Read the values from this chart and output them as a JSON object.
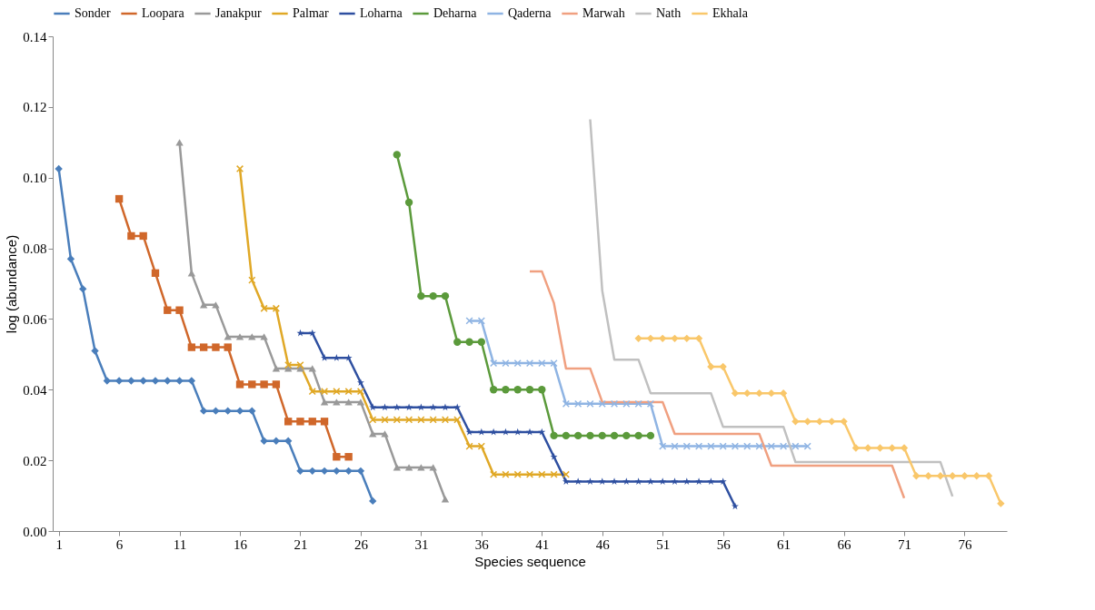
{
  "chart_data": {
    "type": "line",
    "xlabel": "Species sequence",
    "ylabel": "log (abundance)",
    "xlim": [
      0.5,
      79.5
    ],
    "xticks": [
      1,
      6,
      11,
      16,
      21,
      26,
      31,
      36,
      41,
      46,
      51,
      56,
      61,
      66,
      71,
      76
    ],
    "ylim": [
      0,
      0.14
    ],
    "yticks": [
      {
        "value": 0,
        "label": "0.00"
      },
      {
        "value": 0.02,
        "label": "0.02"
      },
      {
        "value": 0.04,
        "label": "0.04"
      },
      {
        "value": 0.06,
        "label": "0.06"
      },
      {
        "value": 0.08,
        "label": "0.08"
      },
      {
        "value": 0.1,
        "label": "0.10"
      },
      {
        "value": 0.12,
        "label": "0.12"
      },
      {
        "value": 0.14,
        "label": "0.14"
      }
    ],
    "grid": false,
    "legend": "top",
    "line_style": "solid",
    "series": [
      {
        "name": "Sonder",
        "color": "#4a7ebb",
        "marker": "diamond",
        "x": [
          1,
          2,
          3,
          4,
          5,
          6,
          7,
          8,
          9,
          10,
          11,
          12,
          13,
          14,
          15,
          16,
          17,
          18,
          19,
          20,
          21,
          22,
          23,
          24,
          25,
          26,
          27
        ],
        "values": [
          0.1025,
          0.077,
          0.0685,
          0.051,
          0.0425,
          0.0425,
          0.0425,
          0.0425,
          0.0425,
          0.0425,
          0.0425,
          0.0425,
          0.034,
          0.034,
          0.034,
          0.034,
          0.034,
          0.0255,
          0.0255,
          0.0255,
          0.017,
          0.017,
          0.017,
          0.017,
          0.017,
          0.017,
          0.0085
        ]
      },
      {
        "name": "Loopara",
        "color": "#d0672a",
        "marker": "square",
        "x": [
          6,
          7,
          8,
          9,
          10,
          11,
          12,
          13,
          14,
          15,
          16,
          17,
          18,
          19,
          20,
          21,
          22,
          23,
          24,
          25
        ],
        "values": [
          0.094,
          0.0835,
          0.0835,
          0.073,
          0.0625,
          0.0625,
          0.052,
          0.052,
          0.052,
          0.052,
          0.0415,
          0.0415,
          0.0415,
          0.0415,
          0.031,
          0.031,
          0.031,
          0.031,
          0.021,
          0.021
        ]
      },
      {
        "name": "Janakpur",
        "color": "#999999",
        "marker": "triangle",
        "x": [
          11,
          12,
          13,
          14,
          15,
          16,
          17,
          18,
          19,
          20,
          21,
          22,
          23,
          24,
          25,
          26,
          27,
          28,
          29,
          30,
          31,
          32,
          33
        ],
        "values": [
          0.11,
          0.073,
          0.064,
          0.064,
          0.055,
          0.055,
          0.055,
          0.055,
          0.046,
          0.046,
          0.046,
          0.046,
          0.0365,
          0.0365,
          0.0365,
          0.0365,
          0.0275,
          0.0275,
          0.018,
          0.018,
          0.018,
          0.018,
          0.009
        ]
      },
      {
        "name": "Palmar",
        "color": "#e0a826",
        "marker": "cross",
        "x": [
          16,
          17,
          18,
          19,
          20,
          21,
          22,
          23,
          24,
          25,
          26,
          27,
          28,
          29,
          30,
          31,
          32,
          33,
          34,
          35,
          36,
          37,
          38,
          39,
          40,
          41,
          42,
          43
        ],
        "values": [
          0.1025,
          0.071,
          0.063,
          0.063,
          0.047,
          0.047,
          0.0395,
          0.0395,
          0.0395,
          0.0395,
          0.0395,
          0.0315,
          0.0315,
          0.0315,
          0.0315,
          0.0315,
          0.0315,
          0.0315,
          0.0315,
          0.024,
          0.024,
          0.016,
          0.016,
          0.016,
          0.016,
          0.016,
          0.016,
          0.016
        ]
      },
      {
        "name": "Loharna",
        "color": "#2e4fa0",
        "marker": "star",
        "x": [
          21,
          22,
          23,
          24,
          25,
          26,
          27,
          28,
          29,
          30,
          31,
          32,
          33,
          34,
          35,
          36,
          37,
          38,
          39,
          40,
          41,
          42,
          43,
          44,
          45,
          46,
          47,
          48,
          49,
          50,
          51,
          52,
          53,
          54,
          55,
          56,
          57
        ],
        "values": [
          0.056,
          0.056,
          0.049,
          0.049,
          0.049,
          0.042,
          0.035,
          0.035,
          0.035,
          0.035,
          0.035,
          0.035,
          0.035,
          0.035,
          0.028,
          0.028,
          0.028,
          0.028,
          0.028,
          0.028,
          0.028,
          0.021,
          0.014,
          0.014,
          0.014,
          0.014,
          0.014,
          0.014,
          0.014,
          0.014,
          0.014,
          0.014,
          0.014,
          0.014,
          0.014,
          0.014,
          0.007
        ]
      },
      {
        "name": "Deharna",
        "color": "#5b9a3b",
        "marker": "circle",
        "x": [
          29,
          30,
          31,
          32,
          33,
          34,
          35,
          36,
          37,
          38,
          39,
          40,
          41,
          42,
          43,
          44,
          45,
          46,
          47,
          48,
          49,
          50
        ],
        "values": [
          0.1065,
          0.093,
          0.0665,
          0.0665,
          0.0665,
          0.0535,
          0.0535,
          0.0535,
          0.04,
          0.04,
          0.04,
          0.04,
          0.04,
          0.027,
          0.027,
          0.027,
          0.027,
          0.027,
          0.027,
          0.027,
          0.027,
          0.027
        ]
      },
      {
        "name": "Qaderna",
        "color": "#8fb4e3",
        "marker": "cross",
        "x": [
          35,
          36,
          37,
          38,
          39,
          40,
          41,
          42,
          43,
          44,
          45,
          46,
          47,
          48,
          49,
          50,
          51,
          52,
          53,
          54,
          55,
          56,
          57,
          58,
          59,
          60,
          61,
          62,
          63
        ],
        "values": [
          0.0595,
          0.0595,
          0.0475,
          0.0475,
          0.0475,
          0.0475,
          0.0475,
          0.0475,
          0.036,
          0.036,
          0.036,
          0.036,
          0.036,
          0.036,
          0.036,
          0.036,
          0.024,
          0.024,
          0.024,
          0.024,
          0.024,
          0.024,
          0.024,
          0.024,
          0.024,
          0.024,
          0.024,
          0.024,
          0.024
        ]
      },
      {
        "name": "Marwah",
        "color": "#f0a080",
        "marker": "none",
        "x": [
          40,
          41,
          42,
          43,
          44,
          45,
          46,
          47,
          48,
          49,
          50,
          51,
          52,
          53,
          54,
          55,
          56,
          57,
          58,
          59,
          60,
          61,
          62,
          63,
          64,
          65,
          66,
          67,
          68,
          69,
          70,
          71
        ],
        "values": [
          0.0735,
          0.0735,
          0.0645,
          0.046,
          0.046,
          0.046,
          0.0365,
          0.0365,
          0.0365,
          0.0365,
          0.0365,
          0.0365,
          0.0275,
          0.0275,
          0.0275,
          0.0275,
          0.0275,
          0.0275,
          0.0275,
          0.0275,
          0.0185,
          0.0185,
          0.0185,
          0.0185,
          0.0185,
          0.0185,
          0.0185,
          0.0185,
          0.0185,
          0.0185,
          0.0185,
          0.0093
        ]
      },
      {
        "name": "Nath",
        "color": "#c0c0c0",
        "marker": "none",
        "x": [
          45,
          46,
          47,
          48,
          49,
          50,
          51,
          52,
          53,
          54,
          55,
          56,
          57,
          58,
          59,
          60,
          61,
          62,
          63,
          64,
          65,
          66,
          67,
          68,
          69,
          70,
          71,
          72,
          73,
          74,
          75
        ],
        "values": [
          0.1165,
          0.068,
          0.0485,
          0.0485,
          0.0485,
          0.039,
          0.039,
          0.039,
          0.039,
          0.039,
          0.039,
          0.0295,
          0.0295,
          0.0295,
          0.0295,
          0.0295,
          0.0295,
          0.0195,
          0.0195,
          0.0195,
          0.0195,
          0.0195,
          0.0195,
          0.0195,
          0.0195,
          0.0195,
          0.0195,
          0.0195,
          0.0195,
          0.0195,
          0.0098
        ]
      },
      {
        "name": "Ekhala",
        "color": "#f9c76a",
        "marker": "diamond",
        "x": [
          49,
          50,
          51,
          52,
          53,
          54,
          55,
          56,
          57,
          58,
          59,
          60,
          61,
          62,
          63,
          64,
          65,
          66,
          67,
          68,
          69,
          70,
          71,
          72,
          73,
          74,
          75,
          76,
          77,
          78,
          79
        ],
        "values": [
          0.0545,
          0.0545,
          0.0545,
          0.0545,
          0.0545,
          0.0545,
          0.0465,
          0.0465,
          0.039,
          0.039,
          0.039,
          0.039,
          0.039,
          0.031,
          0.031,
          0.031,
          0.031,
          0.031,
          0.0235,
          0.0235,
          0.0235,
          0.0235,
          0.0235,
          0.0156,
          0.0156,
          0.0156,
          0.0156,
          0.0156,
          0.0156,
          0.0156,
          0.0078
        ]
      }
    ]
  }
}
